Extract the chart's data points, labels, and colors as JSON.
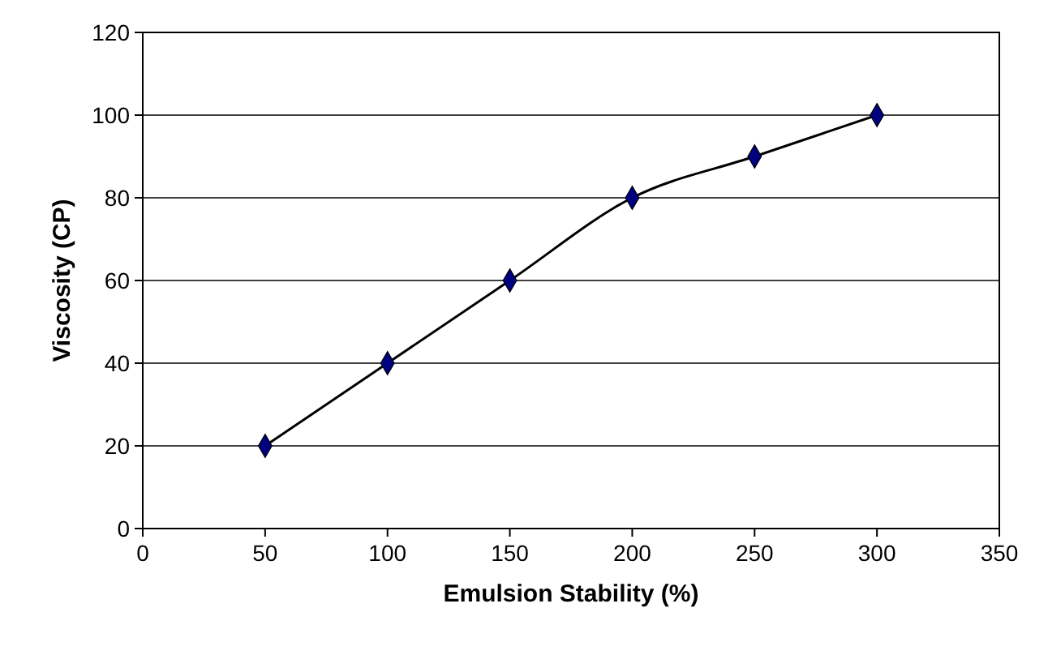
{
  "chart_data": {
    "type": "line",
    "xlabel": "Emulsion Stability (%)",
    "ylabel": "Viscosity (CP)",
    "x": [
      50,
      100,
      150,
      200,
      250,
      300
    ],
    "series": [
      {
        "color": "#000080",
        "values": [
          20,
          40,
          60,
          80,
          90,
          100
        ]
      }
    ],
    "xlim": [
      0,
      350
    ],
    "xticks": [
      0,
      50,
      100,
      150,
      200,
      250,
      300,
      350
    ],
    "ylim": [
      0,
      120
    ],
    "yticks": [
      0,
      20,
      40,
      60,
      80,
      100,
      120
    ],
    "grid": "y",
    "marker": "diamond",
    "line_style": "solid"
  }
}
